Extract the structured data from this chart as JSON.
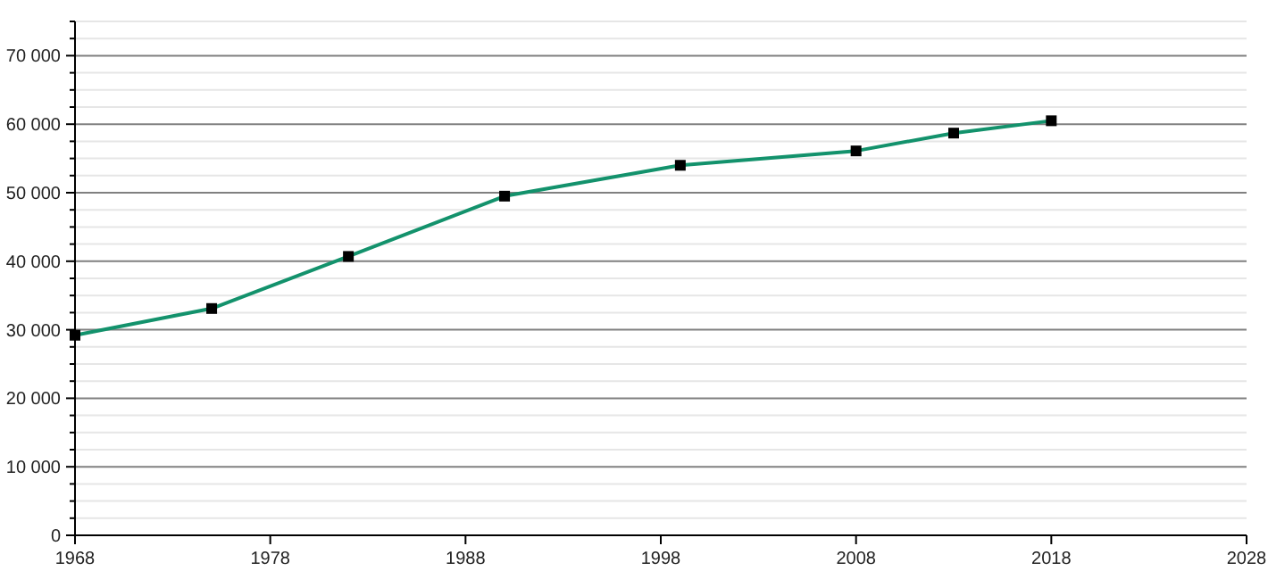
{
  "chart_data": {
    "type": "line",
    "x": [
      1968,
      1975,
      1982,
      1990,
      1999,
      2008,
      2013,
      2018
    ],
    "series": [
      {
        "color": "#13926c",
        "values": [
          29200,
          33100,
          40700,
          49500,
          54000,
          56100,
          58700,
          60500
        ]
      }
    ],
    "marker": "square",
    "grid": "y",
    "xlim": [
      1968,
      2028
    ],
    "xticks": [
      1968,
      1978,
      1988,
      1998,
      2008,
      2018,
      2028
    ],
    "ylim": [
      0,
      75000
    ],
    "yticks": [
      {
        "value": 0,
        "label": "0"
      },
      {
        "value": 2500,
        "label": null
      },
      {
        "value": 5000,
        "label": null
      },
      {
        "value": 7500,
        "label": null
      },
      {
        "value": 10000,
        "label": "10 000"
      },
      {
        "value": 12500,
        "label": null
      },
      {
        "value": 15000,
        "label": null
      },
      {
        "value": 17500,
        "label": null
      },
      {
        "value": 20000,
        "label": "20 000"
      },
      {
        "value": 22500,
        "label": null
      },
      {
        "value": 25000,
        "label": null
      },
      {
        "value": 27500,
        "label": null
      },
      {
        "value": 30000,
        "label": "30 000"
      },
      {
        "value": 32500,
        "label": null
      },
      {
        "value": 35000,
        "label": null
      },
      {
        "value": 37500,
        "label": null
      },
      {
        "value": 40000,
        "label": "40 000"
      },
      {
        "value": 42500,
        "label": null
      },
      {
        "value": 45000,
        "label": null
      },
      {
        "value": 47500,
        "label": null
      },
      {
        "value": 50000,
        "label": "50 000"
      },
      {
        "value": 52500,
        "label": null
      },
      {
        "value": 55000,
        "label": null
      },
      {
        "value": 57500,
        "label": null
      },
      {
        "value": 60000,
        "label": "60 000"
      },
      {
        "value": 62500,
        "label": null
      },
      {
        "value": 65000,
        "label": null
      },
      {
        "value": 67500,
        "label": null
      },
      {
        "value": 70000,
        "label": "70 000"
      },
      {
        "value": 72500,
        "label": null
      },
      {
        "value": 75000,
        "label": null
      }
    ]
  }
}
